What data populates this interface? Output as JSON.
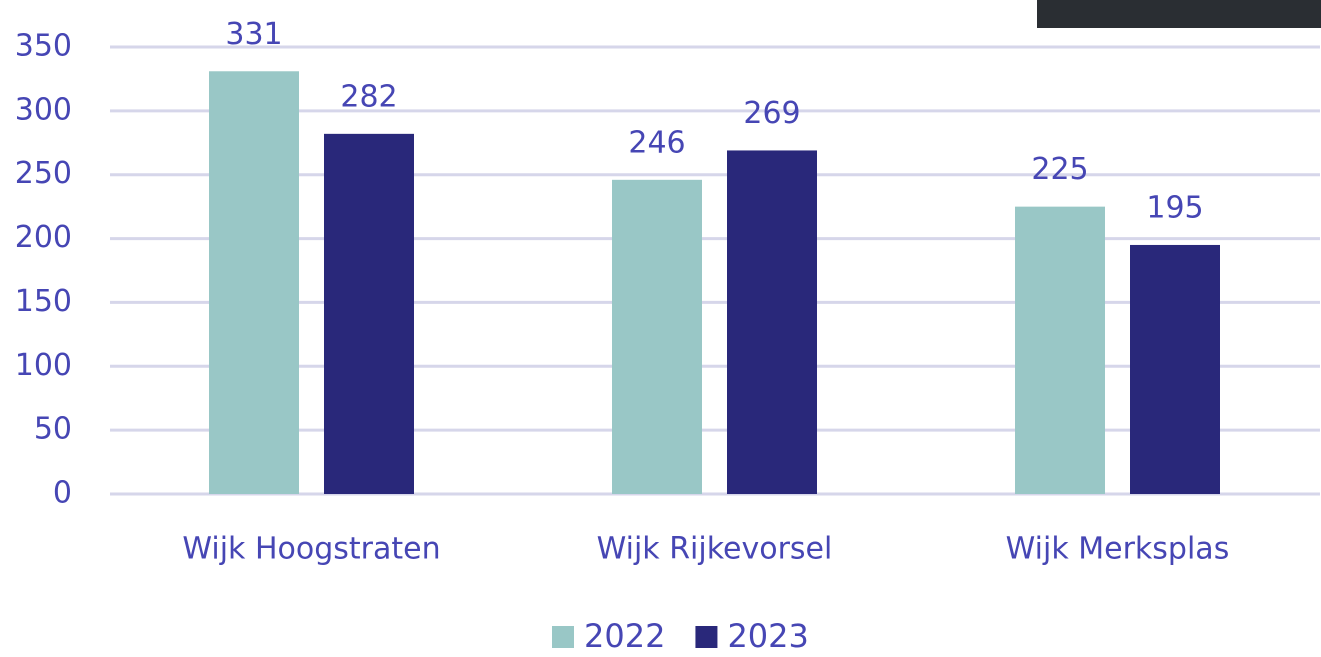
{
  "chart_data": {
    "type": "bar",
    "categories": [
      "Wijk Hoogstraten",
      "Wijk Rijkevorsel",
      "Wijk Merksplas"
    ],
    "series": [
      {
        "name": "2022",
        "color": "#99c7c6",
        "values": [
          331,
          246,
          225
        ]
      },
      {
        "name": "2023",
        "color": "#29287a",
        "values": [
          282,
          269,
          195
        ]
      }
    ],
    "ylim": [
      0,
      350
    ],
    "yticks": [
      0,
      50,
      100,
      150,
      200,
      250,
      300,
      350
    ],
    "grid": true,
    "legend": "bottom"
  }
}
